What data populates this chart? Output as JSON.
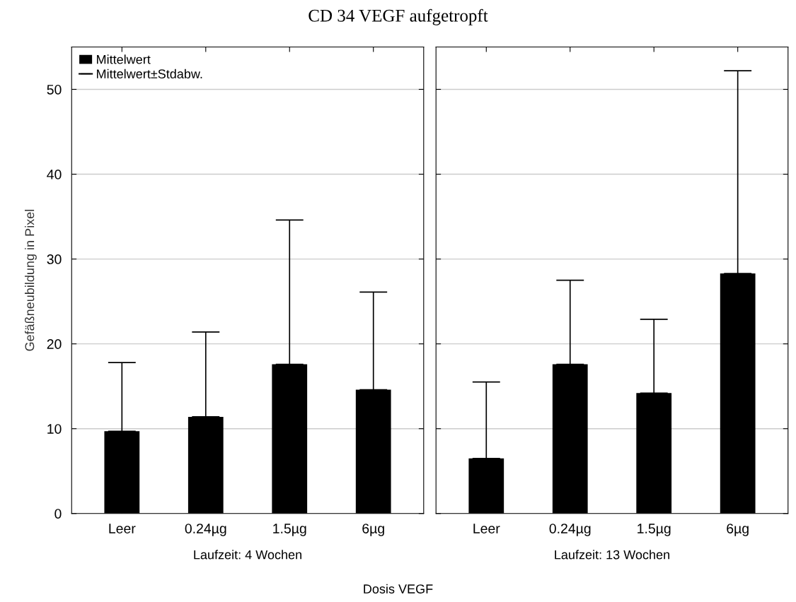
{
  "chart_data": [
    {
      "type": "bar",
      "title": "CD 34 VEGF aufgetropft",
      "xlabel": "Laufzeit: 4 Wochen",
      "ylabel": "Gefäßneubildung in Pixel",
      "categories": [
        "Leer",
        "0.24µg",
        "1.5µg",
        "6µg"
      ],
      "series": [
        {
          "name": "Mittelwert",
          "color": "#000000",
          "values": [
            9.7,
            11.4,
            17.6,
            14.6
          ],
          "errors": [
            [
              9.7,
              17.8
            ],
            [
              11.4,
              21.4
            ],
            [
              17.6,
              34.6
            ],
            [
              14.6,
              26.1
            ]
          ]
        }
      ],
      "ylim": [
        0,
        55
      ],
      "yticks": [
        0,
        10,
        20,
        30,
        40,
        50
      ],
      "grid": "y",
      "legend": "top left",
      "annotations": [
        "Dosis VEGF",
        "Mittelwert±Stdabw."
      ]
    },
    {
      "type": "bar",
      "xlabel": "Laufzeit: 13 Wochen",
      "categories": [
        "Leer",
        "0.24µg",
        "1.5µg",
        "6µg"
      ],
      "series": [
        {
          "color": "#000000",
          "values": [
            6.5,
            17.6,
            14.2,
            28.3
          ],
          "errors": [
            [
              6.5,
              15.5
            ],
            [
              17.6,
              27.5
            ],
            [
              14.2,
              22.9
            ],
            [
              28.3,
              52.2
            ]
          ]
        }
      ],
      "ylim": [
        0,
        55
      ],
      "yticks": [
        0,
        10,
        20,
        30,
        40,
        50
      ],
      "grid": "y",
      "tick_labels": "x"
    }
  ]
}
